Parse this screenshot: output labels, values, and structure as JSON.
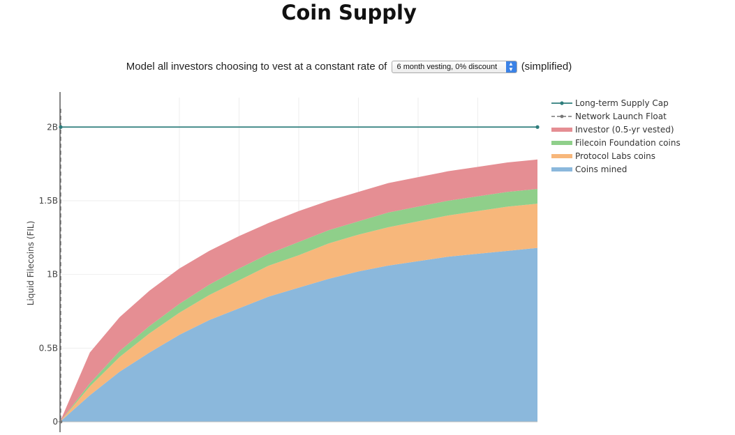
{
  "page": {
    "title": "Coin Supply"
  },
  "controls": {
    "prefix": "Model all investors choosing to vest at a constant rate of",
    "select_value": "6 month vesting, 0% discount",
    "suffix": "(simplified)"
  },
  "chart_data": {
    "type": "area",
    "title": "Coin Supply",
    "ylabel": "Liquid Filecoins (FIL)",
    "xlabel": "",
    "x": [
      0,
      0.5,
      1,
      1.5,
      2,
      2.5,
      3,
      3.5,
      4,
      4.5,
      5,
      5.5,
      6,
      6.5,
      7,
      7.5,
      8
    ],
    "xlim": [
      0,
      8
    ],
    "ylim": [
      0,
      2.2
    ],
    "yticks": [
      0,
      0.5,
      1,
      1.5,
      2
    ],
    "ytick_labels": [
      "0",
      "0.5B",
      "1B",
      "1.5B",
      "2B"
    ],
    "grid": true,
    "legend_position": "top-right",
    "stacked": true,
    "series": [
      {
        "name": "Coins mined",
        "color": "#8bb8dc",
        "values": [
          0,
          0.18,
          0.34,
          0.47,
          0.59,
          0.69,
          0.77,
          0.85,
          0.91,
          0.97,
          1.02,
          1.06,
          1.09,
          1.12,
          1.14,
          1.16,
          1.18
        ]
      },
      {
        "name": "Protocol Labs coins",
        "color": "#f7b77b",
        "values": [
          0,
          0.06,
          0.1,
          0.13,
          0.15,
          0.17,
          0.19,
          0.21,
          0.22,
          0.24,
          0.25,
          0.26,
          0.27,
          0.28,
          0.29,
          0.3,
          0.3
        ]
      },
      {
        "name": "Filecoin Foundation coins",
        "color": "#8fcf8a",
        "values": [
          0,
          0.02,
          0.04,
          0.05,
          0.06,
          0.07,
          0.08,
          0.08,
          0.09,
          0.09,
          0.09,
          0.1,
          0.1,
          0.1,
          0.1,
          0.1,
          0.1
        ]
      },
      {
        "name": "Investor (0.5-yr vested)",
        "color": "#e58e93",
        "values": [
          0,
          0.21,
          0.23,
          0.24,
          0.24,
          0.23,
          0.22,
          0.21,
          0.21,
          0.2,
          0.2,
          0.2,
          0.2,
          0.2,
          0.2,
          0.2,
          0.2
        ]
      }
    ],
    "reference_lines": [
      {
        "name": "Long-term Supply Cap",
        "color": "#2e7d7c",
        "orientation": "horizontal",
        "value": 2
      },
      {
        "name": "Network Launch Float",
        "color": "#777777",
        "orientation": "vertical",
        "value": 0
      }
    ],
    "legend": [
      "Long-term Supply Cap",
      "Network Launch Float",
      "Investor (0.5-yr vested)",
      "Filecoin Foundation coins",
      "Protocol Labs coins",
      "Coins mined"
    ]
  }
}
